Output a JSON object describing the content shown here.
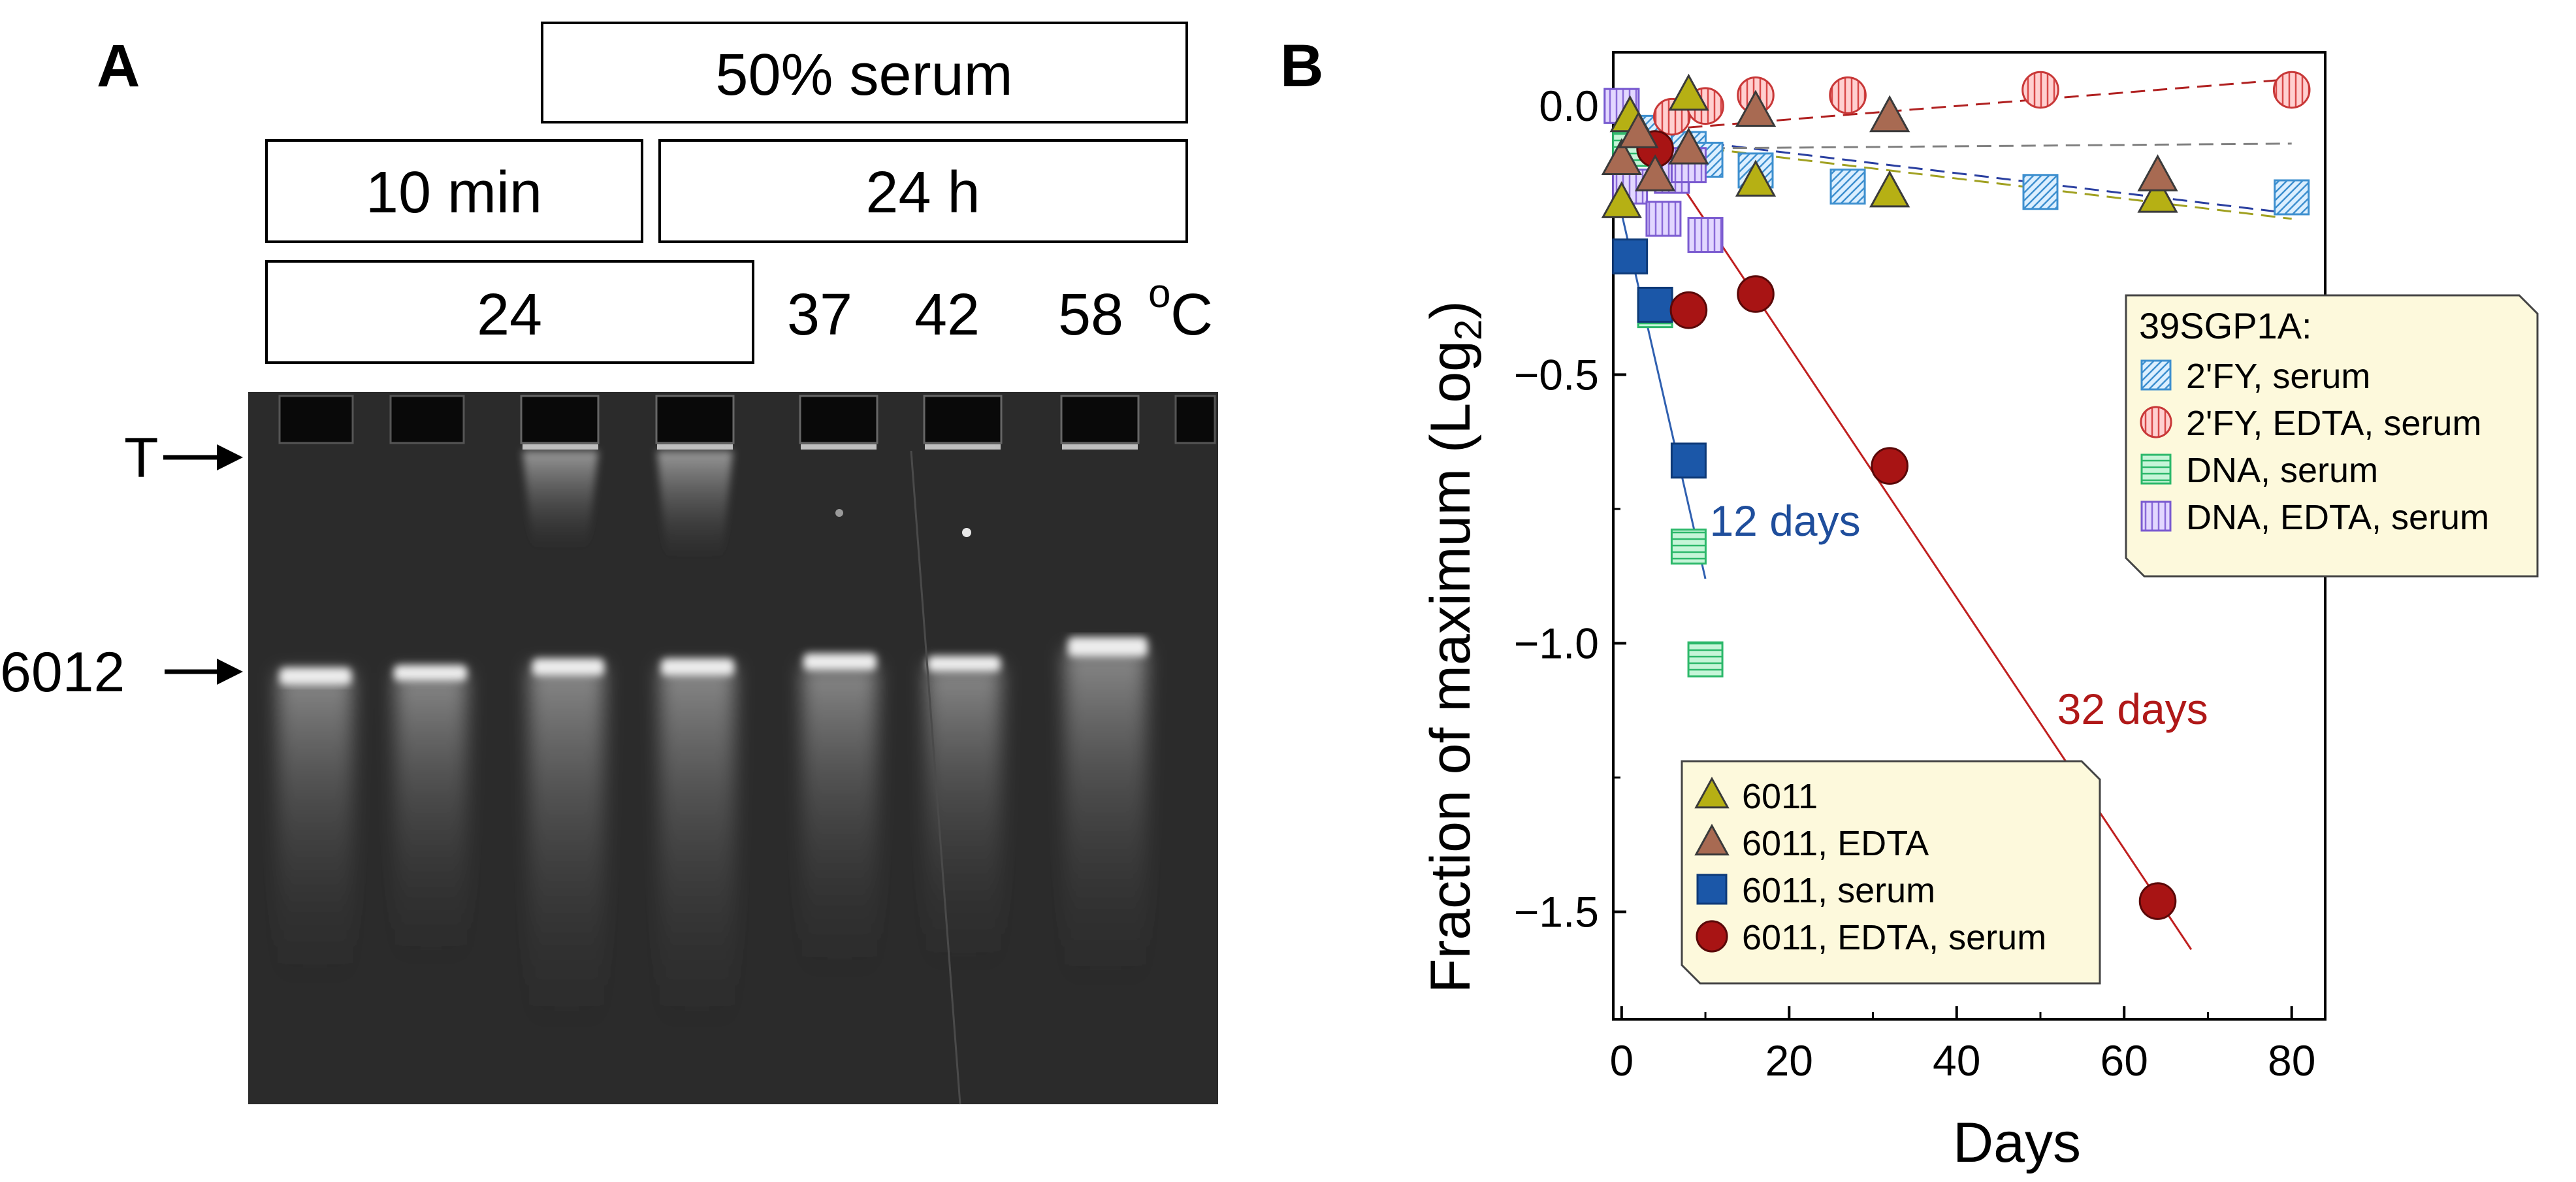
{
  "panel_a": {
    "label": "A",
    "header_serum": "50% serum",
    "header_10min": "10 min",
    "header_24h": "24 h",
    "temp_24": "24",
    "temp_37": "37",
    "temp_42": "42",
    "temp_58": "58",
    "temp_unit_o": "o",
    "temp_unit_c": "C",
    "marker_t": "T",
    "marker_6012": "6012"
  },
  "chart_data": {
    "type": "scatter",
    "panel_label": "B",
    "xlabel": "Days",
    "ylabel": "Fraction of maximum (Log",
    "ylabel_sub": "2",
    "ylabel_close": ")",
    "xlim": [
      -1,
      84
    ],
    "ylim": [
      -1.7,
      0.1
    ],
    "xticks": [
      0,
      20,
      40,
      60,
      80
    ],
    "xtick_labels": [
      "0",
      "20",
      "40",
      "60",
      "80"
    ],
    "yticks": [
      0,
      -0.5,
      -1,
      -1.5
    ],
    "ytick_labels": [
      "0.0",
      "−0.5",
      "−1.0",
      "−1.5"
    ],
    "grid": false,
    "annotations": [
      {
        "text": "12 days",
        "x": 10.5,
        "y": -0.8,
        "color": "#1f4e9c"
      },
      {
        "text": "32 days",
        "x": 52,
        "y": -1.15,
        "color": "#b01818"
      }
    ],
    "legend_39": {
      "title": "39SGP1A:",
      "placement": "right-middle",
      "entries": [
        "2'FY, serum",
        "2'FY, EDTA, serum",
        "DNA, serum",
        "DNA, EDTA, serum"
      ]
    },
    "legend_6011": {
      "placement": "bottom-left",
      "entries": [
        "6011",
        "6011, EDTA",
        "6011, serum",
        "6011, EDTA, serum"
      ]
    },
    "series": [
      {
        "name": "2'FY, serum",
        "marker": "square-hatch",
        "color": "#4aa3d8",
        "x": [
          0,
          4,
          8,
          10,
          16,
          27,
          50,
          80
        ],
        "y": [
          0.0,
          -0.05,
          -0.08,
          -0.1,
          -0.12,
          -0.15,
          -0.16,
          -0.17
        ],
        "fit": {
          "x": [
            0,
            80
          ],
          "y": [
            -0.05,
            -0.2
          ],
          "color": "#2a3fa0",
          "dash": true
        }
      },
      {
        "name": "2'FY, EDTA, serum",
        "marker": "circle-vhatch",
        "color": "#e05050",
        "x": [
          6,
          10,
          16,
          27,
          50,
          80
        ],
        "y": [
          -0.02,
          0.0,
          0.02,
          0.02,
          0.03,
          0.03
        ],
        "fit": {
          "x": [
            0,
            80
          ],
          "y": [
            -0.05,
            0.05
          ],
          "color": "#b02020",
          "dash": true
        }
      },
      {
        "name": "DNA, serum",
        "marker": "square-hhatch",
        "color": "#3cc77a",
        "x": [
          1,
          4,
          8,
          10
        ],
        "y": [
          -0.08,
          -0.38,
          -0.82,
          -1.03
        ]
      },
      {
        "name": "DNA, EDTA, serum",
        "marker": "square-vhatch",
        "color": "#a07ee0",
        "x": [
          0,
          1,
          5,
          6,
          8,
          10
        ],
        "y": [
          0.0,
          -0.15,
          -0.21,
          -0.13,
          -0.11,
          -0.24
        ]
      },
      {
        "name": "6011",
        "marker": "triangle",
        "color": "#b6b014",
        "x": [
          0,
          1,
          8,
          16,
          32,
          64
        ],
        "y": [
          -0.18,
          -0.02,
          0.02,
          -0.14,
          -0.16,
          -0.17
        ],
        "fit": {
          "x": [
            0,
            80
          ],
          "y": [
            -0.06,
            -0.21
          ],
          "color": "#a0a020",
          "dash": true
        }
      },
      {
        "name": "6011, EDTA",
        "marker": "triangle",
        "color": "#a86a52",
        "x": [
          0,
          2,
          4,
          8,
          16,
          32,
          64
        ],
        "y": [
          -0.1,
          -0.05,
          -0.13,
          -0.08,
          -0.01,
          -0.02,
          -0.13
        ],
        "fit": {
          "x": [
            0,
            80
          ],
          "y": [
            -0.08,
            -0.07
          ],
          "color": "#808080",
          "dash": true
        }
      },
      {
        "name": "6011, serum",
        "marker": "square",
        "color": "#1b57a8",
        "x": [
          1,
          4,
          8
        ],
        "y": [
          -0.28,
          -0.37,
          -0.66
        ],
        "fit": {
          "x": [
            0,
            10
          ],
          "y": [
            -0.2,
            -0.88
          ],
          "color": "#3060b0",
          "dash": false
        }
      },
      {
        "name": "6011, EDTA, serum",
        "marker": "circle",
        "color": "#a81414",
        "x": [
          4,
          8,
          16,
          32,
          64
        ],
        "y": [
          -0.08,
          -0.38,
          -0.35,
          -0.67,
          -1.48
        ],
        "fit": {
          "x": [
            0,
            68
          ],
          "y": [
            0.02,
            -1.57
          ],
          "color": "#c02020",
          "dash": false
        }
      }
    ]
  }
}
